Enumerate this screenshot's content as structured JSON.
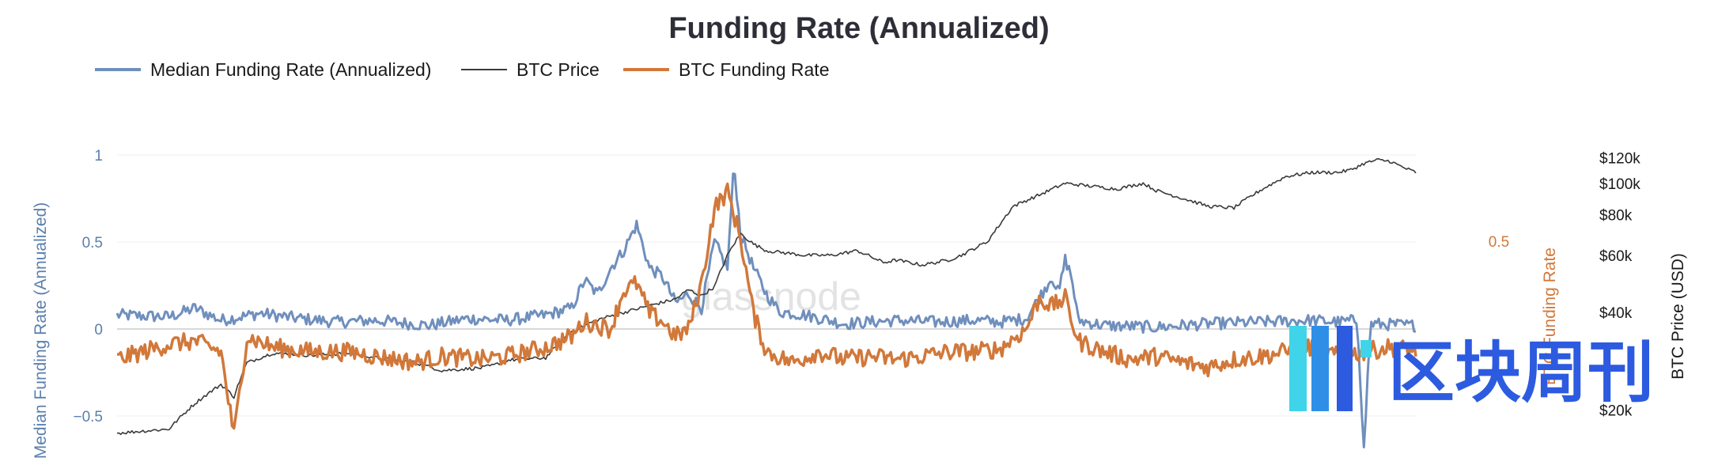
{
  "chart_data": {
    "type": "line",
    "title": "Funding Rate (Annualized)",
    "legend": [
      {
        "name": "Median Funding Rate (Annualized)",
        "color": "#6f8fbd"
      },
      {
        "name": "BTC Price",
        "color": "#3a3a3a"
      },
      {
        "name": "BTC Funding Rate",
        "color": "#d1783a"
      }
    ],
    "y_left": {
      "label": "Median Funding Rate (Annualized)",
      "ticks": [
        "1",
        "0.5",
        "0",
        "−0.5"
      ],
      "tick_values": [
        1,
        0.5,
        0,
        -0.5
      ],
      "range": [
        -0.7,
        1.05
      ]
    },
    "y_funding": {
      "label": "BTC Funding Rate",
      "ticks": [
        "0.5"
      ],
      "tick_values": [
        0.5
      ],
      "range": [
        -0.7,
        1.3
      ]
    },
    "y_right": {
      "label": "BTC Price (USD)",
      "scale": "log",
      "ticks": [
        "$120k",
        "$100k",
        "$80k",
        "$60k",
        "$40k",
        "$20k"
      ],
      "tick_values": [
        120000,
        100000,
        80000,
        60000,
        40000,
        20000
      ]
    },
    "x_range": [
      0,
      100
    ],
    "series": [
      {
        "name": "Median Funding Rate (Annualized)",
        "axis": "left",
        "color": "#6f8fbd",
        "anchors": [
          [
            0,
            0.08
          ],
          [
            4,
            0.07
          ],
          [
            6,
            0.12
          ],
          [
            8,
            0.05
          ],
          [
            11,
            0.09
          ],
          [
            14,
            0.06
          ],
          [
            17,
            0.04
          ],
          [
            20,
            0.05
          ],
          [
            24,
            0.02
          ],
          [
            27,
            0.06
          ],
          [
            30,
            0.05
          ],
          [
            33,
            0.08
          ],
          [
            35,
            0.12
          ],
          [
            36,
            0.28
          ],
          [
            37,
            0.2
          ],
          [
            38,
            0.35
          ],
          [
            39,
            0.45
          ],
          [
            40,
            0.6
          ],
          [
            41,
            0.35
          ],
          [
            42,
            0.3
          ],
          [
            43,
            0.15
          ],
          [
            44,
            0.2
          ],
          [
            45,
            0.12
          ],
          [
            46,
            0.5
          ],
          [
            47,
            0.35
          ],
          [
            47.5,
            0.95
          ],
          [
            48,
            0.55
          ],
          [
            49,
            0.35
          ],
          [
            50,
            0.2
          ],
          [
            51,
            0.1
          ],
          [
            53,
            0.08
          ],
          [
            56,
            0.03
          ],
          [
            60,
            0.05
          ],
          [
            63,
            0.04
          ],
          [
            66,
            0.05
          ],
          [
            68,
            0.04
          ],
          [
            70,
            0.06
          ],
          [
            72,
            0.3
          ],
          [
            72.5,
            0.2
          ],
          [
            73,
            0.4
          ],
          [
            73.5,
            0.3
          ],
          [
            74,
            0.05
          ],
          [
            76,
            0.02
          ],
          [
            80,
            0.01
          ],
          [
            84,
            0.03
          ],
          [
            88,
            0.04
          ],
          [
            92,
            0.05
          ],
          [
            94,
            0.04
          ],
          [
            95.5,
            0.05
          ],
          [
            96,
            -0.7
          ],
          [
            96.5,
            0.03
          ],
          [
            100,
            0.02
          ]
        ]
      },
      {
        "name": "BTC Price",
        "axis": "right",
        "color": "#3a3a3a",
        "anchors": [
          [
            0,
            17000
          ],
          [
            4,
            17500
          ],
          [
            6,
            21000
          ],
          [
            8,
            24000
          ],
          [
            9,
            22000
          ],
          [
            10,
            28000
          ],
          [
            12,
            30000
          ],
          [
            15,
            29500
          ],
          [
            18,
            30000
          ],
          [
            20,
            29000
          ],
          [
            23,
            28000
          ],
          [
            25,
            26500
          ],
          [
            28,
            27000
          ],
          [
            29,
            27500
          ],
          [
            30,
            28500
          ],
          [
            33,
            29000
          ],
          [
            35,
            35000
          ],
          [
            37,
            38000
          ],
          [
            39,
            40000
          ],
          [
            41,
            42000
          ],
          [
            43,
            44000
          ],
          [
            44,
            47000
          ],
          [
            45,
            45000
          ],
          [
            46,
            48000
          ],
          [
            47,
            60000
          ],
          [
            48,
            70000
          ],
          [
            49,
            65000
          ],
          [
            50,
            62000
          ],
          [
            53,
            60000
          ],
          [
            55,
            60000
          ],
          [
            57,
            62000
          ],
          [
            59,
            57000
          ],
          [
            60,
            58000
          ],
          [
            62,
            56000
          ],
          [
            64,
            58000
          ],
          [
            65,
            60000
          ],
          [
            66,
            63000
          ],
          [
            67,
            66000
          ],
          [
            68,
            75000
          ],
          [
            69,
            85000
          ],
          [
            71,
            92000
          ],
          [
            73,
            100000
          ],
          [
            75,
            98000
          ],
          [
            77,
            96000
          ],
          [
            79,
            100000
          ],
          [
            80,
            95000
          ],
          [
            82,
            90000
          ],
          [
            84,
            85000
          ],
          [
            86,
            84000
          ],
          [
            88,
            95000
          ],
          [
            90,
            105000
          ],
          [
            92,
            108000
          ],
          [
            94,
            108000
          ],
          [
            95,
            110000
          ],
          [
            96,
            115000
          ],
          [
            97,
            118000
          ],
          [
            98,
            117000
          ],
          [
            99,
            112000
          ],
          [
            100,
            108000
          ]
        ]
      },
      {
        "name": "BTC Funding Rate",
        "axis": "funding",
        "color": "#d1783a",
        "anchors": [
          [
            0,
            -0.1
          ],
          [
            2,
            -0.05
          ],
          [
            4,
            0
          ],
          [
            6,
            0.02
          ],
          [
            8,
            -0.05
          ],
          [
            9,
            -0.6
          ],
          [
            10,
            0.05
          ],
          [
            12,
            -0.02
          ],
          [
            15,
            -0.05
          ],
          [
            18,
            -0.05
          ],
          [
            20,
            -0.08
          ],
          [
            23,
            -0.12
          ],
          [
            25,
            -0.08
          ],
          [
            28,
            -0.1
          ],
          [
            30,
            -0.08
          ],
          [
            33,
            -0.02
          ],
          [
            35,
            0.05
          ],
          [
            36,
            0.15
          ],
          [
            38,
            0.1
          ],
          [
            39,
            0.35
          ],
          [
            40,
            0.4
          ],
          [
            41,
            0.2
          ],
          [
            42,
            0.15
          ],
          [
            43,
            0.05
          ],
          [
            44,
            0.1
          ],
          [
            45,
            0.4
          ],
          [
            46,
            0.9
          ],
          [
            47,
            1.0
          ],
          [
            48,
            0.7
          ],
          [
            49,
            0.2
          ],
          [
            50,
            -0.05
          ],
          [
            52,
            -0.12
          ],
          [
            54,
            -0.05
          ],
          [
            56,
            -0.1
          ],
          [
            58,
            -0.08
          ],
          [
            60,
            -0.1
          ],
          [
            62,
            -0.08
          ],
          [
            64,
            -0.05
          ],
          [
            66,
            -0.05
          ],
          [
            68,
            -0.03
          ],
          [
            70,
            0.1
          ],
          [
            71,
            0.3
          ],
          [
            72,
            0.25
          ],
          [
            73,
            0.3
          ],
          [
            74,
            0.02
          ],
          [
            76,
            -0.05
          ],
          [
            78,
            -0.1
          ],
          [
            80,
            -0.08
          ],
          [
            82,
            -0.12
          ],
          [
            84,
            -0.15
          ],
          [
            86,
            -0.1
          ],
          [
            88,
            -0.08
          ],
          [
            90,
            -0.05
          ],
          [
            92,
            -0.02
          ],
          [
            94,
            -0.08
          ],
          [
            96,
            -0.05
          ],
          [
            98,
            -0.02
          ],
          [
            100,
            -0.04
          ]
        ]
      }
    ]
  },
  "watermark": "glassnode",
  "brand_logo_text": "区块周刊"
}
